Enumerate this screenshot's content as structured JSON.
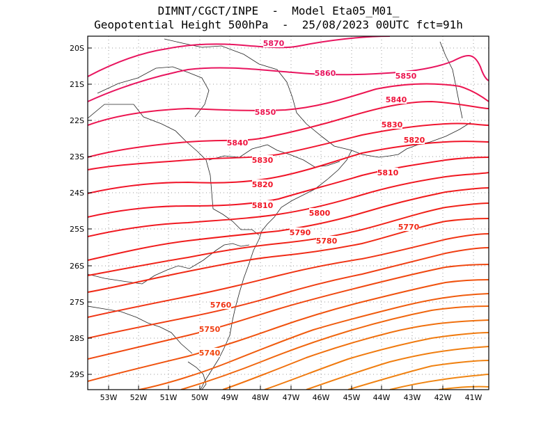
{
  "title_line1": "DIMNT/CGCT/INPE  -  Model Eta05_M01_",
  "title_line2": "Geopotential Height 500hPa  -  25/08/2023 00UTC fct=91h",
  "axes": {
    "lat_labels": [
      "20S",
      "21S",
      "22S",
      "23S",
      "24S",
      "25S",
      "26S",
      "27S",
      "28S",
      "29S"
    ],
    "lon_labels": [
      "53W",
      "52W",
      "51W",
      "50W",
      "49W",
      "48W",
      "47W",
      "46W",
      "45W",
      "44W",
      "43W",
      "42W",
      "41W"
    ]
  },
  "contour_labels": [
    "5870",
    "5860",
    "5850",
    "5850",
    "5840",
    "5840",
    "5830",
    "5830",
    "5820",
    "5820",
    "5810",
    "5810",
    "5800",
    "5790",
    "5780",
    "5770",
    "5760",
    "5750",
    "5740"
  ],
  "colors": {
    "high": "#e8155f",
    "mid": "#f0142a",
    "low": "#f08010",
    "coast": "#000000",
    "grid": "#888888"
  }
}
